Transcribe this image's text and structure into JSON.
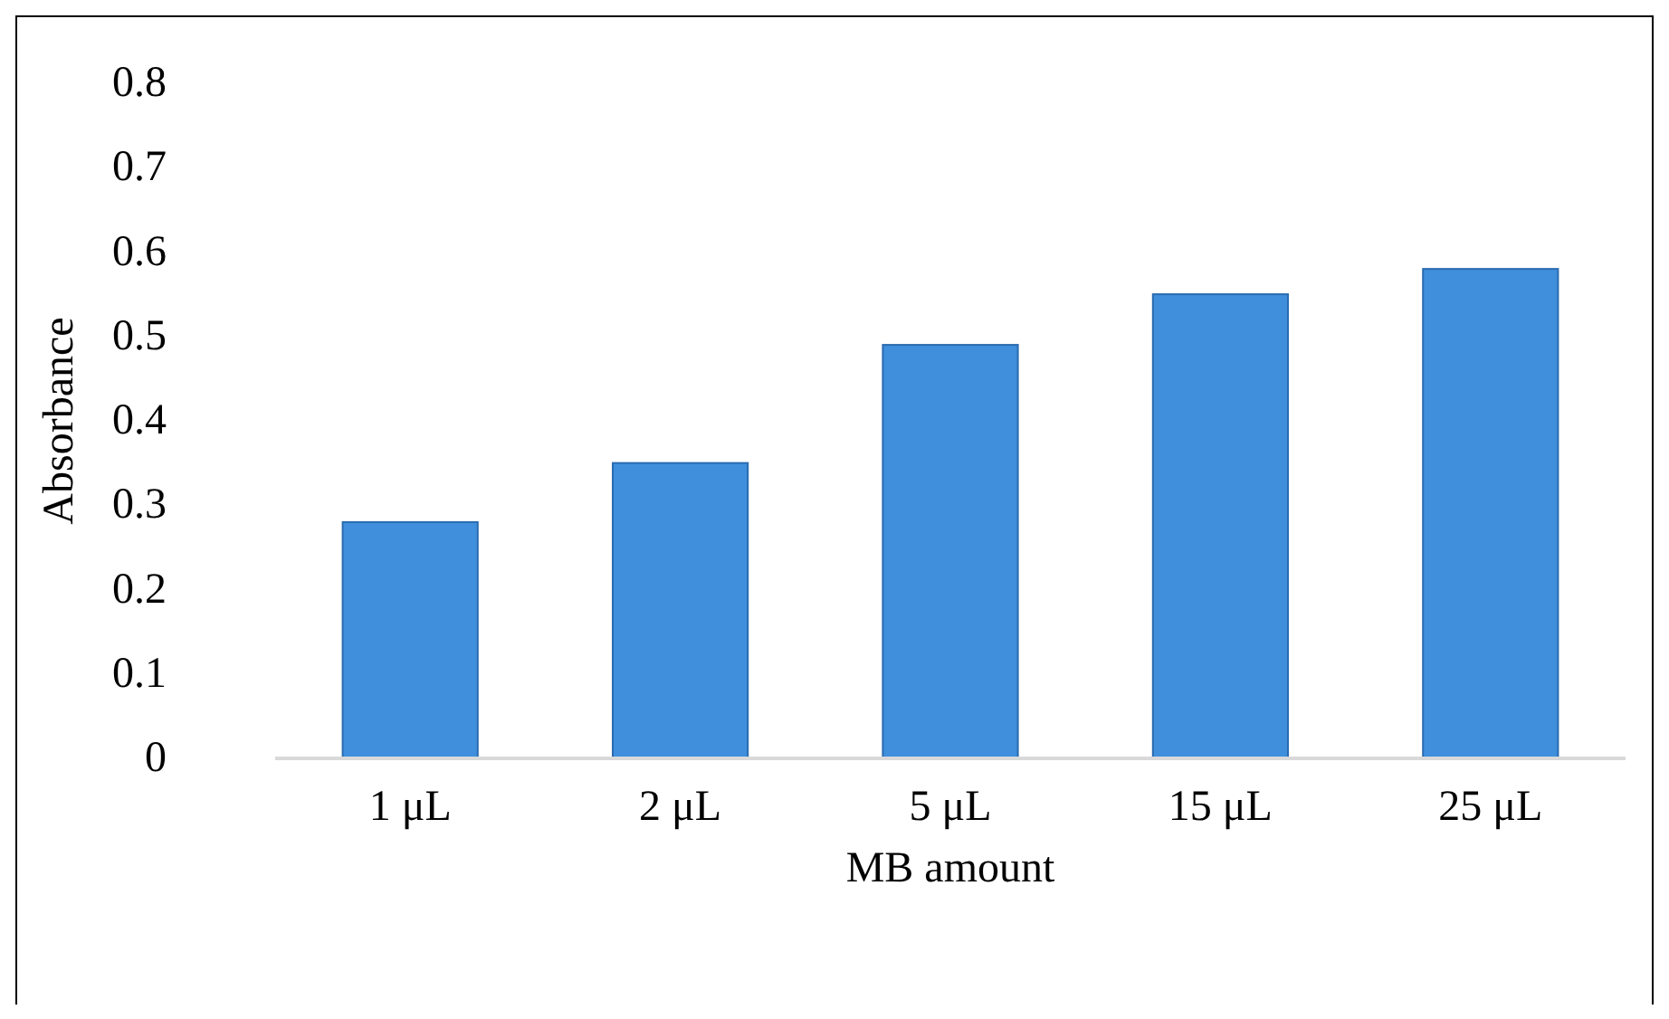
{
  "chart_data": {
    "type": "bar",
    "xlabel": "MB amount",
    "ylabel": "Absorbance",
    "categories": [
      "1 μL",
      "2 μL",
      "5 μL",
      "15 μL",
      "25 μL"
    ],
    "values": [
      0.28,
      0.35,
      0.49,
      0.55,
      0.58
    ],
    "color": "#3f8fdc",
    "ylim": [
      0,
      0.8
    ],
    "yticks": [
      0,
      0.1,
      0.2,
      0.3,
      0.4,
      0.5,
      0.6,
      0.7,
      0.8
    ],
    "grid": false
  }
}
